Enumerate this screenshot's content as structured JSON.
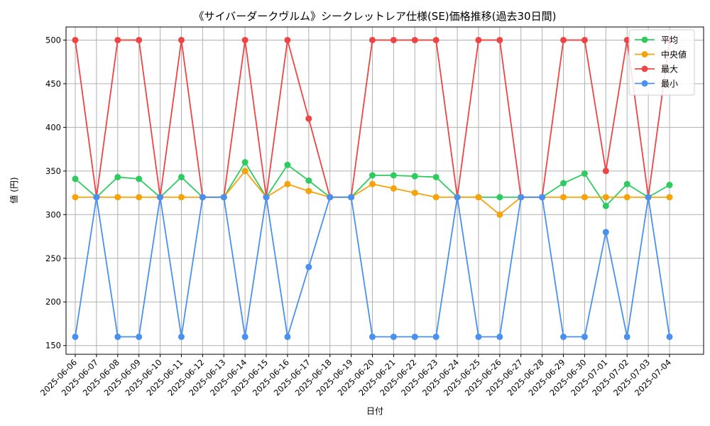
{
  "chart_data": {
    "type": "line",
    "title": "《サイバーダークヴルム》シークレットレア仕様(SE)価格推移(過去30日間)",
    "xlabel": "日付",
    "ylabel": "値 (円)",
    "ylim": [
      140,
      515
    ],
    "yticks": [
      150,
      200,
      250,
      300,
      350,
      400,
      450,
      500
    ],
    "grid": true,
    "legend_position": "top-right",
    "categories": [
      "2025-06-06",
      "2025-06-07",
      "2025-06-08",
      "2025-06-09",
      "2025-06-10",
      "2025-06-11",
      "2025-06-12",
      "2025-06-13",
      "2025-06-14",
      "2025-06-15",
      "2025-06-16",
      "2025-06-17",
      "2025-06-18",
      "2025-06-19",
      "2025-06-20",
      "2025-06-21",
      "2025-06-22",
      "2025-06-23",
      "2025-06-24",
      "2025-06-25",
      "2025-06-26",
      "2025-06-27",
      "2025-06-28",
      "2025-06-29",
      "2025-06-30",
      "2025-07-01",
      "2025-07-02",
      "2025-07-03",
      "2025-07-04"
    ],
    "series": [
      {
        "name": "平均",
        "color": "#2ecc5f",
        "values": [
          341,
          320,
          343,
          341,
          320,
          343,
          320,
          320,
          360,
          320,
          357,
          339,
          320,
          320,
          345,
          345,
          344,
          343,
          320,
          320,
          320,
          320,
          320,
          336,
          347,
          310,
          335,
          320,
          334
        ]
      },
      {
        "name": "中央値",
        "color": "#f5a30a",
        "values": [
          320,
          320,
          320,
          320,
          320,
          320,
          320,
          320,
          350,
          320,
          335,
          327,
          320,
          320,
          335,
          330,
          325,
          320,
          320,
          320,
          300,
          320,
          320,
          320,
          320,
          320,
          320,
          320,
          320
        ]
      },
      {
        "name": "最大",
        "color": "#ef4444",
        "values": [
          500,
          320,
          500,
          500,
          320,
          500,
          320,
          320,
          500,
          320,
          500,
          410,
          320,
          320,
          500,
          500,
          500,
          500,
          320,
          500,
          500,
          320,
          320,
          500,
          500,
          350,
          500,
          320,
          500
        ]
      },
      {
        "name": "最小",
        "color": "#4a90f0",
        "values": [
          160,
          320,
          160,
          160,
          320,
          160,
          320,
          320,
          160,
          320,
          160,
          240,
          320,
          320,
          160,
          160,
          160,
          160,
          320,
          160,
          160,
          320,
          320,
          160,
          160,
          280,
          160,
          320,
          160
        ]
      }
    ]
  }
}
